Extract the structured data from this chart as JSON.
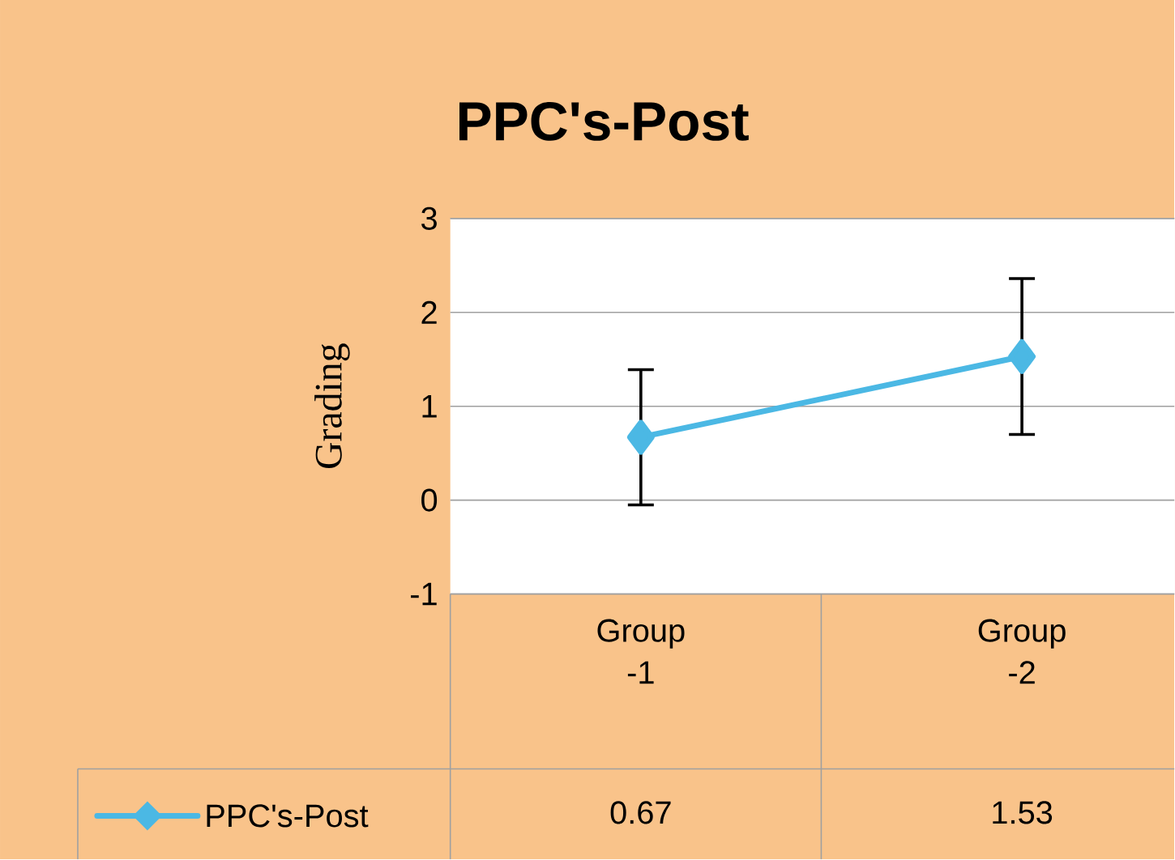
{
  "chart_data": {
    "type": "line",
    "title": "PPC's-Post",
    "ylabel": "Grading",
    "categories": [
      "Group -1",
      "Group -2"
    ],
    "series": [
      {
        "name": "PPC's-Post",
        "color": "#4bb8e4",
        "values": [
          0.67,
          1.53
        ],
        "errors": [
          0.72,
          0.83
        ]
      }
    ],
    "ylim": [
      -1,
      3
    ],
    "yticks": [
      -1,
      0,
      1,
      2,
      3
    ],
    "grid": "y",
    "legend": "bottom",
    "marker": "diamond",
    "line_style": "solid",
    "data_labels": true
  }
}
